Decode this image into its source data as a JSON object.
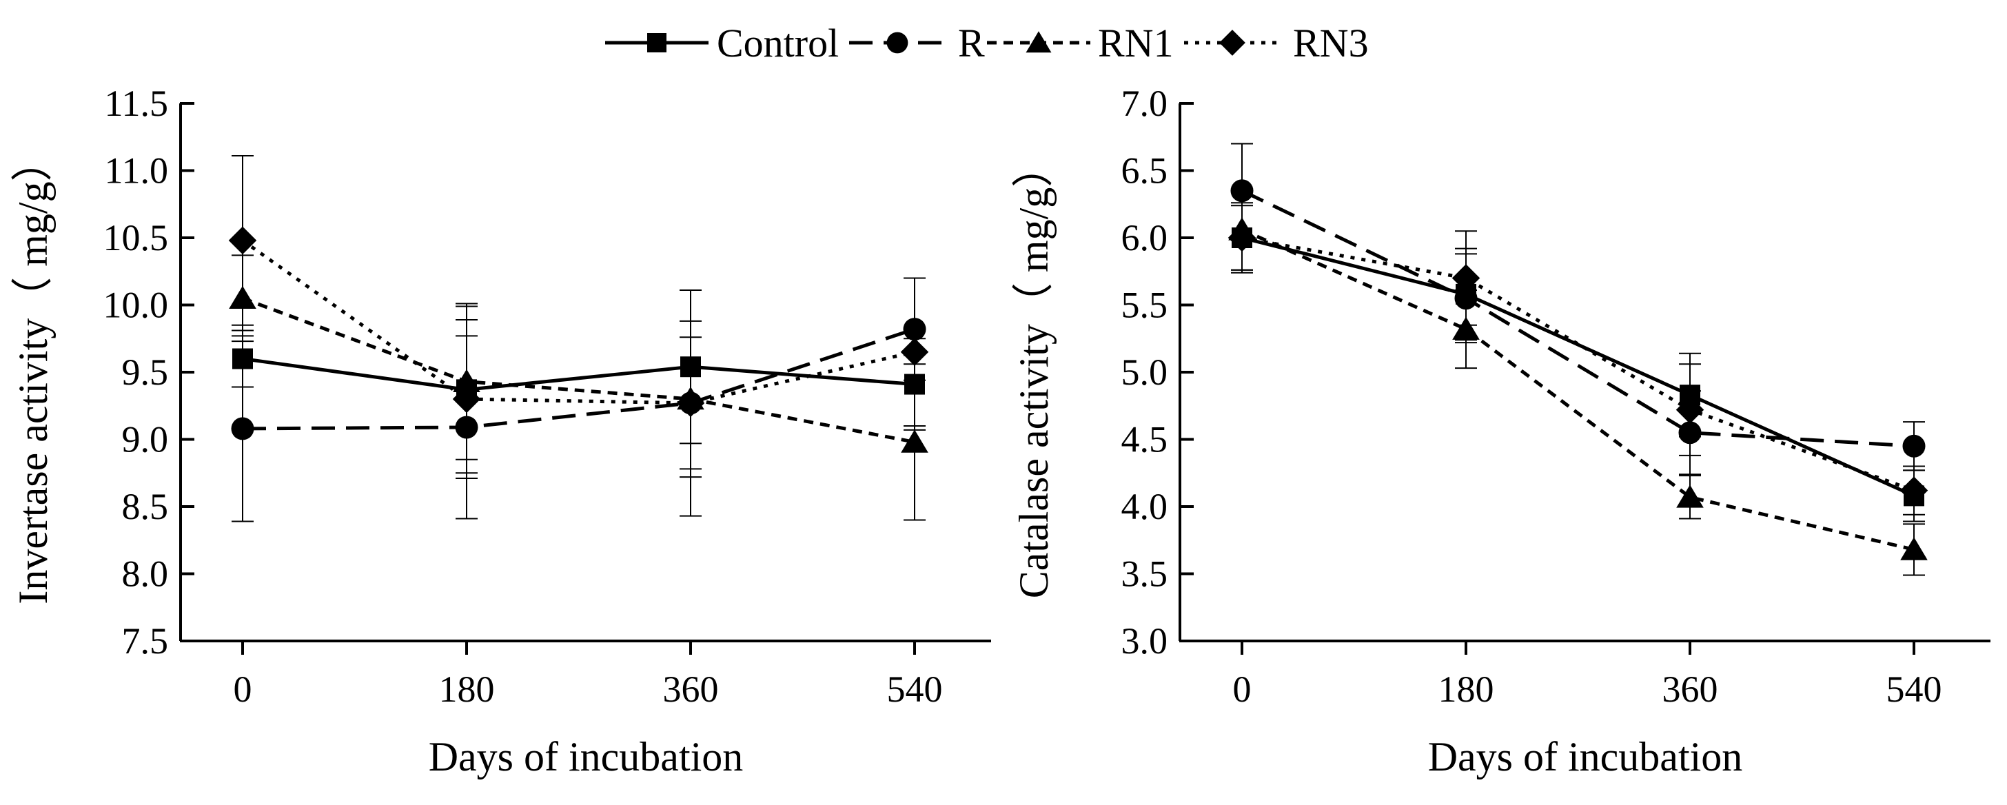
{
  "legend": {
    "series": [
      {
        "name": "Control",
        "marker": "square",
        "dash": "solid"
      },
      {
        "name": "R",
        "marker": "circle",
        "dash": "longdash"
      },
      {
        "name": "RN1",
        "marker": "triangle",
        "dash": "shortdash"
      },
      {
        "name": "RN3",
        "marker": "diamond",
        "dash": "dotted"
      }
    ]
  },
  "chart_data": [
    {
      "type": "line",
      "title": "",
      "xlabel": "Days of incubation",
      "ylabel": "Invertase activity（ mg/g）",
      "categories": [
        "0",
        "180",
        "360",
        "540"
      ],
      "ylim": [
        7.5,
        11.5
      ],
      "yticks": [
        "7.5",
        "8.0",
        "8.5",
        "9.0",
        "9.5",
        "10.0",
        "10.5",
        "11.0",
        "11.5"
      ],
      "grid": false,
      "series": [
        {
          "name": "Control",
          "values": [
            9.6,
            9.37,
            9.54,
            9.41
          ],
          "errors": [
            0.21,
            0.62,
            0.57,
            0.34
          ]
        },
        {
          "name": "R",
          "values": [
            9.08,
            9.09,
            9.27,
            9.82
          ],
          "errors": [
            0.69,
            0.68,
            0.84,
            0.38
          ]
        },
        {
          "name": "RN1",
          "values": [
            10.05,
            9.43,
            9.3,
            8.98
          ],
          "errors": [
            0.32,
            0.58,
            0.58,
            0.58
          ]
        },
        {
          "name": "RN3",
          "values": [
            10.48,
            9.3,
            9.27,
            9.65
          ],
          "errors": [
            0.63,
            0.59,
            0.49,
            0.55
          ]
        }
      ]
    },
    {
      "type": "line",
      "title": "",
      "xlabel": "Days of incubation",
      "ylabel": "Catalase activity（ mg/g）",
      "categories": [
        "0",
        "180",
        "360",
        "540"
      ],
      "ylim": [
        3.0,
        7.0
      ],
      "yticks": [
        "3.0",
        "3.5",
        "4.0",
        "4.5",
        "5.0",
        "5.5",
        "6.0",
        "6.5",
        "7.0"
      ],
      "grid": false,
      "series": [
        {
          "name": "Control",
          "values": [
            6.0,
            5.58,
            4.83,
            4.08
          ],
          "errors": [
            0.24,
            0.34,
            0.31,
            0.19
          ]
        },
        {
          "name": "R",
          "values": [
            6.35,
            5.55,
            4.55,
            4.45
          ],
          "errors": [
            0.35,
            0.33,
            0.31,
            0.18
          ]
        },
        {
          "name": "RN1",
          "values": [
            6.06,
            5.32,
            4.07,
            3.68
          ],
          "errors": [
            0.3,
            0.29,
            0.16,
            0.19
          ]
        },
        {
          "name": "RN3",
          "values": [
            6.0,
            5.7,
            4.72,
            4.12
          ],
          "errors": [
            0.26,
            0.35,
            0.34,
            0.18
          ]
        }
      ]
    }
  ]
}
